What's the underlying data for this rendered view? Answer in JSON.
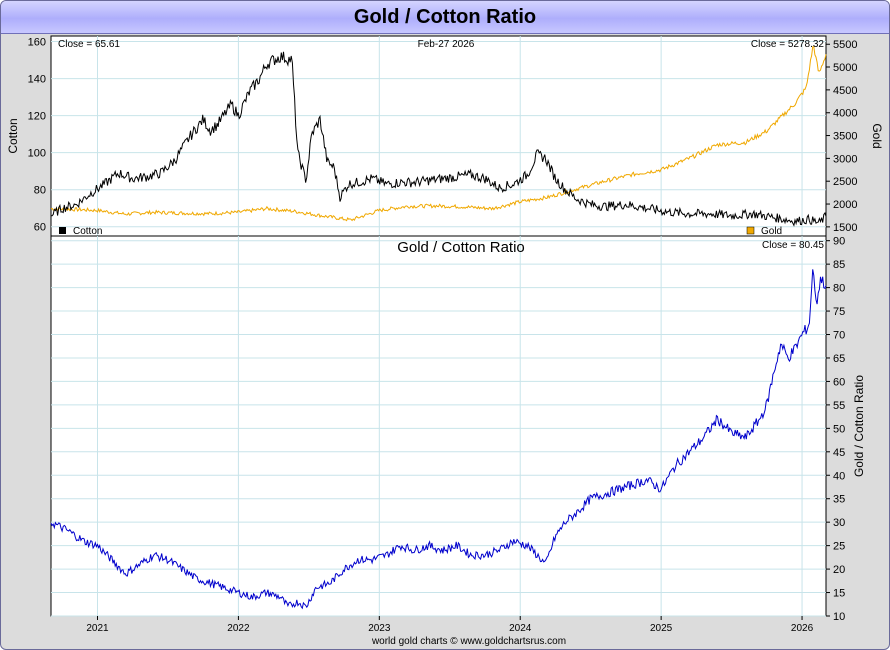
{
  "title": "Gold / Cotton Ratio",
  "footer": "world gold charts © www.goldchartsrus.com",
  "colors": {
    "cotton": "#000000",
    "gold": "#f0a800",
    "ratio": "#0000cc",
    "grid": "#c8e4ea",
    "panel_bg": "#ffffff"
  },
  "chart_data": [
    {
      "type": "line",
      "title": "",
      "date_label": "Feb-27  2026",
      "x_ticks": [
        "2021",
        "2022",
        "2023",
        "2024",
        "2025",
        "2026"
      ],
      "x_range": [
        2020.67,
        2026.17
      ],
      "left_axis": {
        "label": "Cotton",
        "range": [
          55,
          163
        ],
        "ticks": [
          60,
          80,
          100,
          120,
          140,
          160
        ],
        "close_label": "Close = 65.61"
      },
      "right_axis": {
        "label": "Gold",
        "range": [
          1300,
          5680
        ],
        "ticks": [
          1500,
          2000,
          2500,
          3000,
          3500,
          4000,
          4500,
          5000,
          5500
        ],
        "close_label": "Close = 5278.32"
      },
      "series": [
        {
          "name": "Cotton",
          "axis": "left",
          "x": [
            2020.67,
            2020.75,
            2020.85,
            2020.95,
            2021.05,
            2021.15,
            2021.25,
            2021.35,
            2021.45,
            2021.55,
            2021.65,
            2021.75,
            2021.8,
            2021.85,
            2021.95,
            2022.0,
            2022.08,
            2022.15,
            2022.2,
            2022.3,
            2022.38,
            2022.42,
            2022.48,
            2022.52,
            2022.58,
            2022.63,
            2022.68,
            2022.72,
            2022.78,
            2022.85,
            2022.95,
            2023.05,
            2023.15,
            2023.25,
            2023.35,
            2023.45,
            2023.55,
            2023.65,
            2023.75,
            2023.85,
            2023.95,
            2024.05,
            2024.12,
            2024.18,
            2024.25,
            2024.32,
            2024.4,
            2024.5,
            2024.6,
            2024.75,
            2024.9,
            2025.05,
            2025.2,
            2025.35,
            2025.5,
            2025.65,
            2025.8,
            2025.95,
            2026.05,
            2026.12,
            2026.17
          ],
          "values": [
            66,
            70,
            72,
            78,
            83,
            89,
            86,
            87,
            89,
            96,
            108,
            118,
            112,
            115,
            126,
            120,
            133,
            140,
            148,
            152,
            150,
            100,
            85,
            110,
            118,
            95,
            92,
            76,
            83,
            84,
            86,
            83,
            84,
            84,
            85,
            86,
            87,
            88,
            86,
            81,
            83,
            88,
            99,
            97,
            86,
            80,
            75,
            72,
            71,
            72,
            70,
            68,
            67,
            67,
            66,
            67,
            65,
            63,
            64,
            62,
            65.61
          ]
        },
        {
          "name": "Gold",
          "axis": "right",
          "x": [
            2020.67,
            2020.85,
            2021.0,
            2021.2,
            2021.4,
            2021.6,
            2021.8,
            2022.0,
            2022.2,
            2022.4,
            2022.6,
            2022.8,
            2023.0,
            2023.2,
            2023.4,
            2023.6,
            2023.8,
            2024.0,
            2024.2,
            2024.4,
            2024.6,
            2024.8,
            2025.0,
            2025.2,
            2025.4,
            2025.6,
            2025.75,
            2025.85,
            2025.95,
            2026.03,
            2026.08,
            2026.12,
            2026.17
          ],
          "values": [
            1900,
            1880,
            1860,
            1780,
            1820,
            1800,
            1790,
            1820,
            1900,
            1840,
            1740,
            1650,
            1860,
            1950,
            1960,
            1940,
            1900,
            2050,
            2150,
            2330,
            2500,
            2650,
            2750,
            3000,
            3300,
            3350,
            3600,
            3900,
            4200,
            4550,
            5500,
            4850,
            5278.32
          ]
        }
      ]
    },
    {
      "type": "line",
      "title": "Gold  /  Cotton Ratio",
      "x_ticks": [
        "2021",
        "2022",
        "2023",
        "2024",
        "2025",
        "2026"
      ],
      "x_range": [
        2020.67,
        2026.17
      ],
      "right_axis": {
        "label": "Gold / Cotton Ratio",
        "range": [
          10,
          91
        ],
        "ticks": [
          10,
          15,
          20,
          25,
          30,
          35,
          40,
          45,
          50,
          55,
          60,
          65,
          70,
          75,
          80,
          85,
          90
        ],
        "close_label": "Close = 80.45"
      },
      "series": [
        {
          "name": "Gold / Cotton Ratio",
          "x": [
            2020.67,
            2020.8,
            2020.9,
            2021.0,
            2021.1,
            2021.2,
            2021.3,
            2021.4,
            2021.5,
            2021.6,
            2021.7,
            2021.8,
            2021.9,
            2022.0,
            2022.1,
            2022.2,
            2022.3,
            2022.35,
            2022.42,
            2022.48,
            2022.55,
            2022.65,
            2022.75,
            2022.85,
            2022.95,
            2023.05,
            2023.15,
            2023.25,
            2023.35,
            2023.45,
            2023.55,
            2023.65,
            2023.75,
            2023.85,
            2023.95,
            2024.05,
            2024.12,
            2024.18,
            2024.25,
            2024.32,
            2024.4,
            2024.5,
            2024.6,
            2024.7,
            2024.8,
            2024.9,
            2025.0,
            2025.1,
            2025.2,
            2025.3,
            2025.4,
            2025.5,
            2025.6,
            2025.7,
            2025.75,
            2025.8,
            2025.85,
            2025.9,
            2025.95,
            2026.0,
            2026.05,
            2026.08,
            2026.1,
            2026.13,
            2026.17
          ],
          "values": [
            30,
            28,
            26,
            25,
            22,
            19,
            21,
            23,
            22,
            20,
            18,
            17,
            16,
            15,
            14,
            15,
            14,
            12,
            13,
            12,
            16,
            17,
            20,
            22,
            22,
            23,
            25,
            24,
            25,
            24,
            25,
            23,
            23,
            24,
            26,
            25,
            23,
            21,
            27,
            30,
            32,
            35,
            36,
            37,
            38,
            39,
            37,
            42,
            45,
            48,
            52,
            49,
            48,
            52,
            55,
            62,
            68,
            65,
            67,
            70,
            72,
            85,
            76,
            82,
            80.45
          ]
        }
      ]
    }
  ]
}
